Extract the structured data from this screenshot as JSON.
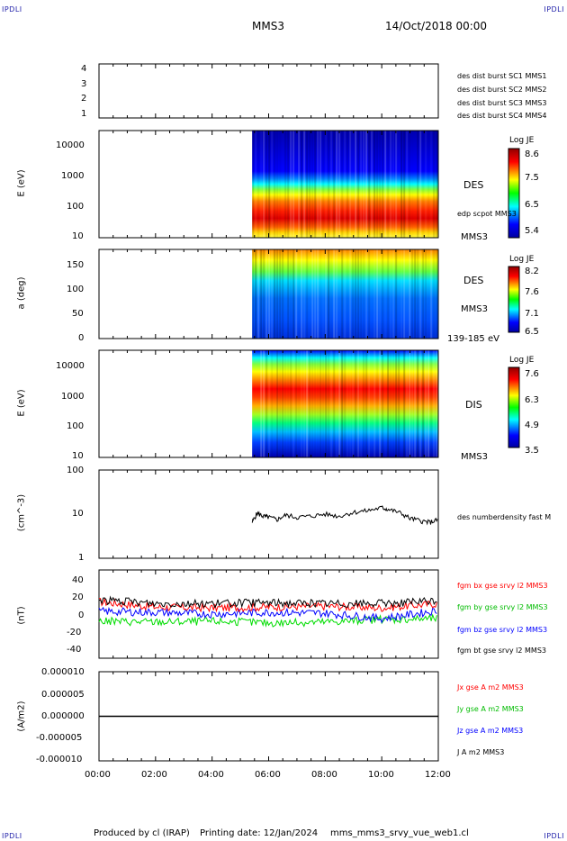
{
  "header": {
    "corner_tl": "IPDLI",
    "corner_tr": "IPDLI",
    "corner_bl": "IPDLI",
    "corner_br": "IPDLI",
    "spacecraft": "MMS3",
    "date": "14/Oct/2018 00:00"
  },
  "footer": {
    "produced": "Produced by cl (IRAP)",
    "printing": "Printing date: 12/Jan/2024",
    "file": "mms_mms3_srvy_vue_web1.cl"
  },
  "colors": {
    "burst1": "#0000cc",
    "burst2": "#cc00cc",
    "burst3": "#cc0000",
    "burst4": "#00bb00",
    "bx": "#ff0000",
    "by": "#00dd00",
    "bz": "#0000ff",
    "bt": "#000000"
  },
  "chart_data": [
    {
      "type": "line",
      "panel": "burst",
      "ylabel": "",
      "ylim": [
        0.5,
        4.5
      ],
      "yticks": [
        "1",
        "2",
        "3",
        "4"
      ],
      "series": [
        {
          "name": "des dist burst SC1 MMS1",
          "values": []
        },
        {
          "name": "des dist burst SC2 MMS2",
          "values": []
        },
        {
          "name": "des dist burst SC3 MMS3",
          "values": []
        },
        {
          "name": "des dist burst SC4 MMS4",
          "values": []
        }
      ]
    },
    {
      "type": "heatmap",
      "panel": "des_energy",
      "ylabel": "E (eV)",
      "yscale": "log",
      "ylim": [
        10,
        30000
      ],
      "yticks": [
        "10",
        "100",
        "1000",
        "10000"
      ],
      "data_start": "05:25",
      "colorbar": {
        "title": "Log JE",
        "ticks": [
          "8.6",
          "7.5",
          "6.5",
          "5.4"
        ]
      },
      "labels": [
        "DES",
        "MMS3",
        "edp scpot MMS3"
      ]
    },
    {
      "type": "heatmap",
      "panel": "des_pitch",
      "ylabel": "a (deg)",
      "ylim": [
        0,
        180
      ],
      "yticks": [
        "0",
        "50",
        "100",
        "150"
      ],
      "data_start": "05:25",
      "colorbar": {
        "title": "Log JE",
        "ticks": [
          "8.2",
          "7.6",
          "7.1",
          "6.5"
        ]
      },
      "labels": [
        "DES",
        "MMS3",
        "139-185 eV"
      ]
    },
    {
      "type": "heatmap",
      "panel": "dis_energy",
      "ylabel": "E (eV)",
      "yscale": "log",
      "ylim": [
        10,
        30000
      ],
      "yticks": [
        "10",
        "100",
        "1000",
        "10000"
      ],
      "data_start": "05:25",
      "colorbar": {
        "title": "Log JE",
        "ticks": [
          "7.6",
          "6.3",
          "4.9",
          "3.5"
        ]
      },
      "labels": [
        "DIS",
        "MMS3"
      ]
    },
    {
      "type": "line",
      "panel": "density",
      "ylabel": "(cm^-3)",
      "yscale": "log",
      "ylim": [
        1,
        100
      ],
      "yticks": [
        "1",
        "10",
        "100"
      ],
      "series": [
        {
          "name": "des numberdensity fast M",
          "x": [
            5.42,
            5.6,
            5.8,
            6.0,
            6.3,
            6.6,
            7.0,
            7.5,
            8.0,
            8.5,
            9.0,
            9.5,
            10.0,
            10.2,
            10.6,
            11.0,
            11.4,
            11.7,
            12.0
          ],
          "values": [
            6.5,
            10.5,
            9.0,
            8.5,
            7.5,
            9.5,
            8.5,
            9.0,
            10.0,
            9.0,
            11.0,
            12.0,
            14.0,
            13.0,
            11.0,
            8.0,
            7.0,
            6.5,
            7.5
          ]
        }
      ]
    },
    {
      "type": "line",
      "panel": "magnetic_field",
      "ylabel": "(nT)",
      "ylim": [
        -50,
        50
      ],
      "yticks": [
        "40",
        "20",
        "0",
        "-20",
        "-40"
      ],
      "series": [
        {
          "name": "fgm bx gse srvy l2 MMS3",
          "x": [
            0,
            2,
            4,
            6,
            8,
            10,
            12
          ],
          "values": [
            14,
            8,
            7,
            8,
            9,
            7,
            12
          ]
        },
        {
          "name": "fgm by gse srvy l2 MMS3",
          "x": [
            0,
            2,
            4,
            6,
            8,
            10,
            12
          ],
          "values": [
            -8,
            -9,
            -8,
            -10,
            -9,
            -6,
            -5
          ]
        },
        {
          "name": "fgm bz gse srvy l2 MMS3",
          "x": [
            0,
            2,
            4,
            6,
            8,
            10,
            12
          ],
          "values": [
            3,
            2,
            0,
            2,
            1,
            -5,
            4
          ]
        },
        {
          "name": "fgm bt gse srvy l2 MMS3",
          "x": [
            0,
            2,
            4,
            6,
            8,
            10,
            12
          ],
          "values": [
            16,
            12,
            12,
            13,
            12,
            12,
            15
          ]
        }
      ]
    },
    {
      "type": "line",
      "panel": "current_density",
      "ylabel": "(A/m2)",
      "ylim": [
        -1e-05,
        1e-05
      ],
      "yticks": [
        "0.000010",
        "0.000005",
        "0.000000",
        "-0.000005",
        "-0.000010"
      ],
      "series": [
        {
          "name": "Jx gse A m2 MMS3",
          "x": [
            0,
            12
          ],
          "values": [
            0,
            0
          ]
        },
        {
          "name": "Jy gse A m2 MMS3",
          "x": [
            0,
            12
          ],
          "values": [
            0,
            0
          ]
        },
        {
          "name": "Jz gse A m2 MMS3",
          "x": [
            0,
            12
          ],
          "values": [
            0,
            0
          ]
        },
        {
          "name": "J A m2 MMS3",
          "x": [
            0,
            12
          ],
          "values": [
            0,
            0
          ]
        }
      ]
    }
  ],
  "xaxis": {
    "range_hours": [
      0,
      12
    ],
    "ticks": [
      "00:00",
      "02:00",
      "04:00",
      "06:00",
      "08:00",
      "10:00",
      "12:00"
    ]
  }
}
